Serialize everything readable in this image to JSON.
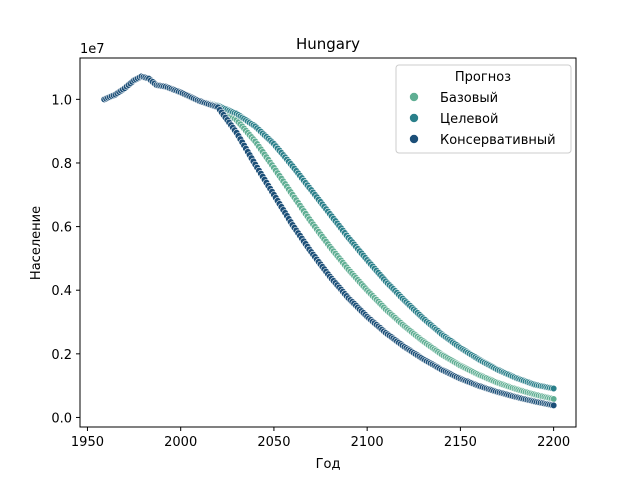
{
  "chart_data": {
    "type": "scatter",
    "title": "Hungary",
    "xlabel": "Год",
    "ylabel": "Население",
    "y_multiplier_label": "1e7",
    "xlim": [
      1946,
      2212
    ],
    "ylim": [
      -0.03,
      1.13
    ],
    "x_ticks": [
      1950,
      2000,
      2050,
      2100,
      2150,
      2200
    ],
    "y_ticks": [
      0.0,
      0.2,
      0.4,
      0.6,
      0.8,
      1.0
    ],
    "y_tick_labels": [
      "0.0",
      "0.2",
      "0.4",
      "0.6",
      "0.8",
      "1.0"
    ],
    "grid": false,
    "legend": {
      "title": "Прогноз",
      "position": "top-right",
      "entries": [
        "Базовый",
        "Целевой",
        "Консервативный"
      ]
    },
    "series": [
      {
        "name": "Базовый",
        "color": "#5fae93",
        "points": [
          [
            1959,
            1.0
          ],
          [
            1965,
            1.015
          ],
          [
            1970,
            1.035
          ],
          [
            1975,
            1.06
          ],
          [
            1979,
            1.072
          ],
          [
            1983,
            1.065
          ],
          [
            1987,
            1.045
          ],
          [
            1992,
            1.04
          ],
          [
            2000,
            1.022
          ],
          [
            2010,
            0.995
          ],
          [
            2020,
            0.978
          ],
          [
            2030,
            0.935
          ],
          [
            2040,
            0.868
          ],
          [
            2050,
            0.785
          ],
          [
            2060,
            0.7
          ],
          [
            2070,
            0.615
          ],
          [
            2080,
            0.537
          ],
          [
            2090,
            0.465
          ],
          [
            2100,
            0.4
          ],
          [
            2110,
            0.34
          ],
          [
            2120,
            0.287
          ],
          [
            2130,
            0.24
          ],
          [
            2140,
            0.198
          ],
          [
            2150,
            0.163
          ],
          [
            2160,
            0.134
          ],
          [
            2170,
            0.109
          ],
          [
            2180,
            0.089
          ],
          [
            2190,
            0.072
          ],
          [
            2200,
            0.058
          ]
        ]
      },
      {
        "name": "Целевой",
        "color": "#2a7f8a",
        "points": [
          [
            1959,
            1.0
          ],
          [
            1965,
            1.015
          ],
          [
            1970,
            1.035
          ],
          [
            1975,
            1.06
          ],
          [
            1979,
            1.072
          ],
          [
            1983,
            1.065
          ],
          [
            1987,
            1.045
          ],
          [
            1992,
            1.04
          ],
          [
            2000,
            1.022
          ],
          [
            2010,
            0.995
          ],
          [
            2020,
            0.98
          ],
          [
            2030,
            0.955
          ],
          [
            2040,
            0.915
          ],
          [
            2050,
            0.86
          ],
          [
            2060,
            0.79
          ],
          [
            2070,
            0.715
          ],
          [
            2080,
            0.64
          ],
          [
            2090,
            0.565
          ],
          [
            2100,
            0.495
          ],
          [
            2110,
            0.428
          ],
          [
            2120,
            0.368
          ],
          [
            2130,
            0.312
          ],
          [
            2140,
            0.262
          ],
          [
            2150,
            0.219
          ],
          [
            2160,
            0.182
          ],
          [
            2170,
            0.15
          ],
          [
            2180,
            0.124
          ],
          [
            2190,
            0.103
          ],
          [
            2200,
            0.091
          ]
        ]
      },
      {
        "name": "Консервативный",
        "color": "#1c4f78",
        "points": [
          [
            1959,
            1.0
          ],
          [
            1965,
            1.015
          ],
          [
            1970,
            1.035
          ],
          [
            1975,
            1.06
          ],
          [
            1979,
            1.072
          ],
          [
            1983,
            1.065
          ],
          [
            1987,
            1.045
          ],
          [
            1992,
            1.04
          ],
          [
            2000,
            1.022
          ],
          [
            2010,
            0.995
          ],
          [
            2020,
            0.975
          ],
          [
            2030,
            0.895
          ],
          [
            2040,
            0.795
          ],
          [
            2050,
            0.7
          ],
          [
            2060,
            0.605
          ],
          [
            2070,
            0.52
          ],
          [
            2080,
            0.443
          ],
          [
            2090,
            0.375
          ],
          [
            2100,
            0.317
          ],
          [
            2110,
            0.266
          ],
          [
            2120,
            0.222
          ],
          [
            2130,
            0.184
          ],
          [
            2140,
            0.15
          ],
          [
            2150,
            0.122
          ],
          [
            2160,
            0.099
          ],
          [
            2170,
            0.08
          ],
          [
            2180,
            0.064
          ],
          [
            2190,
            0.05
          ],
          [
            2200,
            0.038
          ]
        ]
      }
    ]
  }
}
